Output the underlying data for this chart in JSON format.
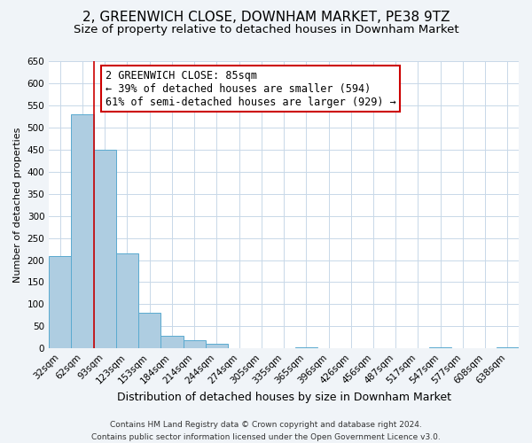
{
  "title": "2, GREENWICH CLOSE, DOWNHAM MARKET, PE38 9TZ",
  "subtitle": "Size of property relative to detached houses in Downham Market",
  "xlabel": "Distribution of detached houses by size in Downham Market",
  "ylabel": "Number of detached properties",
  "footer_line1": "Contains HM Land Registry data © Crown copyright and database right 2024.",
  "footer_line2": "Contains public sector information licensed under the Open Government Licence v3.0.",
  "bar_labels": [
    "32sqm",
    "62sqm",
    "93sqm",
    "123sqm",
    "153sqm",
    "184sqm",
    "214sqm",
    "244sqm",
    "274sqm",
    "305sqm",
    "335sqm",
    "365sqm",
    "396sqm",
    "426sqm",
    "456sqm",
    "487sqm",
    "517sqm",
    "547sqm",
    "577sqm",
    "608sqm",
    "638sqm"
  ],
  "bar_values": [
    210,
    530,
    450,
    215,
    80,
    28,
    18,
    10,
    0,
    0,
    0,
    3,
    0,
    0,
    0,
    0,
    0,
    2,
    0,
    0,
    2
  ],
  "bar_color": "#aecde1",
  "bar_edge_color": "#5aaad0",
  "ylim": [
    0,
    650
  ],
  "yticks": [
    0,
    50,
    100,
    150,
    200,
    250,
    300,
    350,
    400,
    450,
    500,
    550,
    600,
    650
  ],
  "vline_x": 1.5,
  "vline_color": "#cc0000",
  "annotation_text": "2 GREENWICH CLOSE: 85sqm\n← 39% of detached houses are smaller (594)\n61% of semi-detached houses are larger (929) →",
  "annotation_box_color": "#ffffff",
  "annotation_box_edge_color": "#cc0000",
  "bg_color": "#f0f4f8",
  "plot_bg_color": "#ffffff",
  "grid_color": "#c8d8e8",
  "title_fontsize": 11,
  "subtitle_fontsize": 9.5,
  "xlabel_fontsize": 9,
  "ylabel_fontsize": 8,
  "tick_fontsize": 7.5,
  "annotation_fontsize": 8.5,
  "footer_fontsize": 6.5
}
